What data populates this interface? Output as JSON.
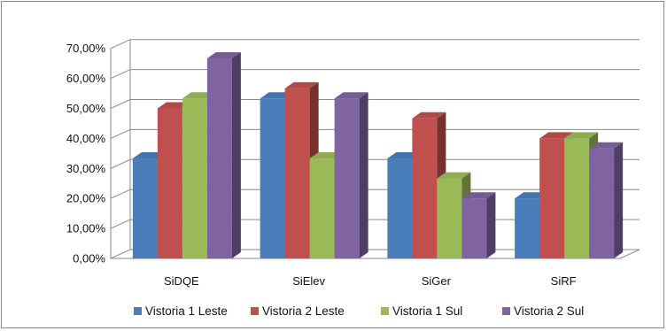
{
  "chart_data": {
    "type": "bar",
    "style": "3d-clustered-column",
    "categories": [
      "SiDQE",
      "SiElev",
      "SiGer",
      "SiRF"
    ],
    "y_ticks": [
      "0,00%",
      "10,00%",
      "20,00%",
      "30,00%",
      "40,00%",
      "50,00%",
      "60,00%",
      "70,00%"
    ],
    "ylim": [
      0,
      70
    ],
    "y_unit": "%",
    "grid": true,
    "legend_position": "bottom",
    "series": [
      {
        "name": "Vistoria 1 Leste",
        "color": "#4a7ebb",
        "values": [
          33.33,
          53.33,
          33.33,
          20.0
        ]
      },
      {
        "name": "Vistoria 2 Leste",
        "color": "#c0504d",
        "values": [
          50.0,
          56.67,
          46.67,
          40.0
        ]
      },
      {
        "name": "Vistoria 1 Sul",
        "color": "#9bbb59",
        "values": [
          53.33,
          33.33,
          26.67,
          40.0
        ]
      },
      {
        "name": "Vistoria 2 Sul",
        "color": "#8064a2",
        "values": [
          66.67,
          53.33,
          20.0,
          36.67
        ]
      }
    ]
  }
}
